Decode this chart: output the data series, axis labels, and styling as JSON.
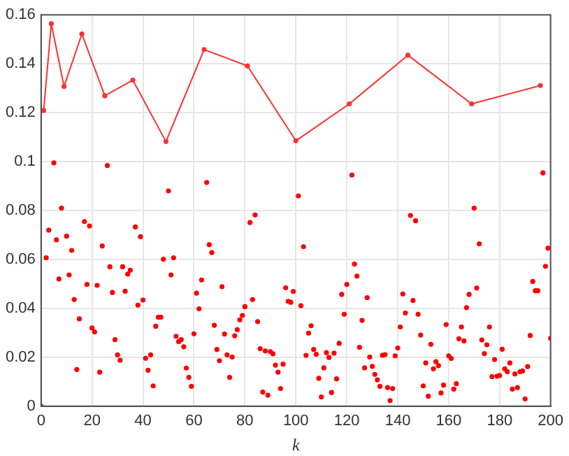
{
  "chart_data": {
    "type": "scatter",
    "xlabel": "k",
    "xlim": [
      0,
      200
    ],
    "ylim": [
      0,
      0.16
    ],
    "xticks": [
      0,
      20,
      40,
      60,
      80,
      100,
      120,
      140,
      160,
      180,
      200
    ],
    "yticks": [
      0,
      0.02,
      0.04,
      0.06,
      0.08,
      0.1,
      0.12,
      0.14,
      0.16
    ],
    "grid": true,
    "marker": "circle",
    "series": [
      {
        "type": "scatter",
        "color": "#ff0000",
        "x": [
          0,
          2,
          3,
          5,
          6,
          7,
          8,
          10,
          11,
          12,
          13,
          14,
          15,
          17,
          18,
          19,
          20,
          21,
          22,
          23,
          24,
          26,
          27,
          28,
          29,
          30,
          31,
          32,
          33,
          34,
          35,
          37,
          38,
          39,
          40,
          41,
          42,
          43,
          44,
          45,
          46,
          47,
          48,
          50,
          51,
          52,
          53,
          54,
          55,
          56,
          57,
          58,
          59,
          60,
          61,
          62,
          63,
          65,
          66,
          67,
          68,
          69,
          70,
          71,
          72,
          73,
          74,
          75,
          76,
          77,
          78,
          79,
          80,
          82,
          83,
          84,
          85,
          86,
          87,
          88,
          89,
          90,
          91,
          92,
          93,
          94,
          95,
          96,
          97,
          98,
          99,
          101,
          102,
          103,
          104,
          105,
          106,
          107,
          108,
          109,
          110,
          111,
          112,
          113,
          114,
          115,
          116,
          117,
          118,
          119,
          120,
          122,
          123,
          124,
          125,
          126,
          127,
          128,
          129,
          130,
          131,
          132,
          133,
          134,
          135,
          136,
          137,
          138,
          139,
          140,
          141,
          142,
          143,
          145,
          146,
          147,
          148,
          149,
          150,
          151,
          152,
          153,
          154,
          155,
          156,
          157,
          158,
          159,
          160,
          161,
          162,
          163,
          164,
          165,
          166,
          167,
          168,
          170,
          171,
          172,
          173,
          174,
          175,
          176,
          177,
          178,
          179,
          180,
          181,
          182,
          183,
          184,
          185,
          186,
          187,
          188,
          189,
          190,
          191,
          192,
          193,
          194,
          195,
          197,
          198,
          199,
          200
        ],
        "values": [
          0,
          0.0607,
          0.072,
          0.0995,
          0.068,
          0.052,
          0.081,
          0.0695,
          0.0537,
          0.0637,
          0.0436,
          0.015,
          0.0357,
          0.0755,
          0.0498,
          0.0737,
          0.032,
          0.0304,
          0.0494,
          0.0139,
          0.0655,
          0.0984,
          0.057,
          0.0465,
          0.0272,
          0.021,
          0.0188,
          0.057,
          0.047,
          0.054,
          0.0556,
          0.0733,
          0.0413,
          0.0693,
          0.0434,
          0.0196,
          0.0147,
          0.021,
          0.0083,
          0.0327,
          0.0364,
          0.0364,
          0.0601,
          0.088,
          0.0537,
          0.0607,
          0.0286,
          0.0264,
          0.0272,
          0.0243,
          0.0156,
          0.0118,
          0.0081,
          0.0296,
          0.0462,
          0.0398,
          0.0516,
          0.0915,
          0.066,
          0.0628,
          0.0331,
          0.0232,
          0.0186,
          0.0489,
          0.0295,
          0.021,
          0.0118,
          0.0201,
          0.0288,
          0.0313,
          0.0353,
          0.0371,
          0.0407,
          0.0751,
          0.0436,
          0.0782,
          0.0346,
          0.0235,
          0.0058,
          0.0226,
          0.0045,
          0.0223,
          0.0214,
          0.0168,
          0.0139,
          0.0072,
          0.0172,
          0.0484,
          0.0429,
          0.0425,
          0.0469,
          0.086,
          0.0411,
          0.0652,
          0.0208,
          0.0299,
          0.0329,
          0.0232,
          0.0212,
          0.0114,
          0.0038,
          0.0157,
          0.0219,
          0.0199,
          0.0056,
          0.0217,
          0.0112,
          0.0257,
          0.0457,
          0.0376,
          0.0498,
          0.0945,
          0.0581,
          0.0532,
          0.0241,
          0.0351,
          0.0157,
          0.0444,
          0.0201,
          0.0163,
          0.013,
          0.0108,
          0.0081,
          0.0208,
          0.0211,
          0.0076,
          0.0023,
          0.0072,
          0.0206,
          0.0238,
          0.0324,
          0.0459,
          0.0381,
          0.078,
          0.0432,
          0.0758,
          0.0376,
          0.0291,
          0.0083,
          0.0177,
          0.0041,
          0.0253,
          0.0153,
          0.0182,
          0.0166,
          0.0054,
          0.0086,
          0.0334,
          0.0206,
          0.0195,
          0.007,
          0.0092,
          0.0276,
          0.0324,
          0.0267,
          0.0403,
          0.0457,
          0.081,
          0.0483,
          0.0664,
          0.0271,
          0.0215,
          0.0251,
          0.0324,
          0.0121,
          0.0191,
          0.0123,
          0.0126,
          0.0233,
          0.0153,
          0.0141,
          0.0177,
          0.007,
          0.0132,
          0.0076,
          0.0141,
          0.0144,
          0.003,
          0.0162,
          0.0289,
          0.051,
          0.0472,
          0.0472,
          0.0954,
          0.0572,
          0.0646,
          0.0278
        ]
      },
      {
        "type": "line",
        "color": "#ff3030",
        "x": [
          1,
          4,
          9,
          16,
          25,
          36,
          49,
          64,
          81,
          100,
          121,
          144,
          169,
          196
        ],
        "values": [
          0.1209,
          0.1564,
          0.1307,
          0.1522,
          0.1269,
          0.1333,
          0.1082,
          0.1458,
          0.1391,
          0.1085,
          0.1236,
          0.1435,
          0.1236,
          0.1311
        ]
      }
    ]
  }
}
